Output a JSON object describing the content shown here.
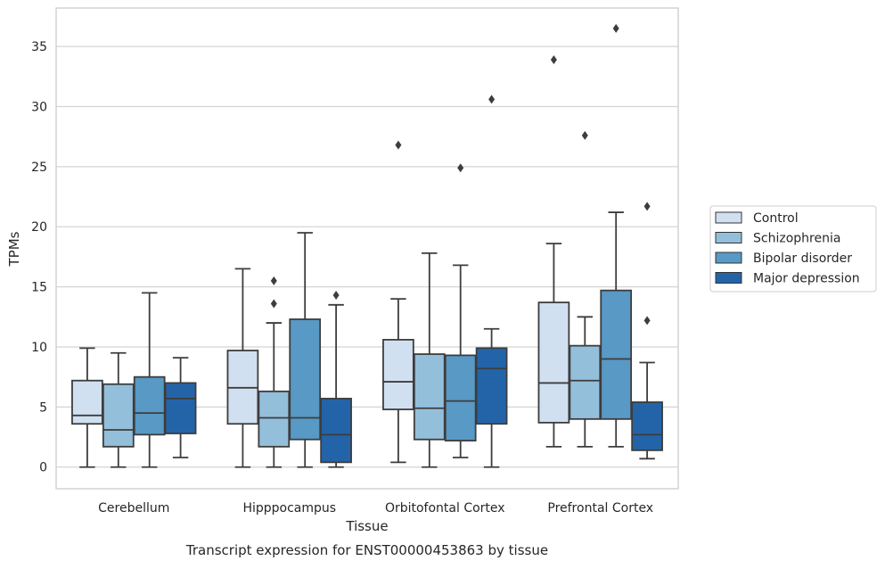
{
  "chart_data": {
    "type": "box",
    "caption": "Transcript expression for ENST00000453863 by tissue",
    "xlabel": "Tissue",
    "ylabel": "TPMs",
    "ylim": [
      -1.8,
      38.2
    ],
    "yticks": [
      0,
      5,
      10,
      15,
      20,
      25,
      30,
      35
    ],
    "grid": "horizontal",
    "legend_position": "right",
    "categories": [
      "Cerebellum",
      "Hipppocampus",
      "Orbitofontal Cortex",
      "Prefrontal Cortex"
    ],
    "series": [
      {
        "name": "Control",
        "color": "#d1e0f0",
        "boxes": [
          {
            "whislo": 0.0,
            "q1": 3.6,
            "med": 4.3,
            "q3": 7.2,
            "whishi": 9.9,
            "fliers": []
          },
          {
            "whislo": 0.0,
            "q1": 3.6,
            "med": 6.6,
            "q3": 9.7,
            "whishi": 16.5,
            "fliers": []
          },
          {
            "whislo": 0.4,
            "q1": 4.8,
            "med": 7.1,
            "q3": 10.6,
            "whishi": 14.0,
            "fliers": [
              26.8
            ]
          },
          {
            "whislo": 1.7,
            "q1": 3.7,
            "med": 7.0,
            "q3": 13.7,
            "whishi": 18.6,
            "fliers": [
              33.9
            ]
          }
        ]
      },
      {
        "name": "Schizophrenia",
        "color": "#93bfdb",
        "boxes": [
          {
            "whislo": 0.0,
            "q1": 1.7,
            "med": 3.1,
            "q3": 6.9,
            "whishi": 9.5,
            "fliers": []
          },
          {
            "whislo": 0.0,
            "q1": 1.7,
            "med": 4.1,
            "q3": 6.3,
            "whishi": 12.0,
            "fliers": [
              13.6,
              15.5
            ]
          },
          {
            "whislo": 0.0,
            "q1": 2.3,
            "med": 4.9,
            "q3": 9.4,
            "whishi": 17.8,
            "fliers": []
          },
          {
            "whislo": 1.7,
            "q1": 4.0,
            "med": 7.2,
            "q3": 10.1,
            "whishi": 12.5,
            "fliers": [
              27.6
            ]
          }
        ]
      },
      {
        "name": "Bipolar disorder",
        "color": "#5899c5",
        "boxes": [
          {
            "whislo": 0.0,
            "q1": 2.7,
            "med": 4.5,
            "q3": 7.5,
            "whishi": 14.5,
            "fliers": []
          },
          {
            "whislo": 0.0,
            "q1": 2.3,
            "med": 4.1,
            "q3": 12.3,
            "whishi": 19.5,
            "fliers": []
          },
          {
            "whislo": 0.8,
            "q1": 2.2,
            "med": 5.5,
            "q3": 9.3,
            "whishi": 16.8,
            "fliers": [
              24.9
            ]
          },
          {
            "whislo": 1.7,
            "q1": 4.0,
            "med": 9.0,
            "q3": 14.7,
            "whishi": 21.2,
            "fliers": [
              36.5
            ]
          }
        ]
      },
      {
        "name": "Major depression",
        "color": "#2364a9",
        "boxes": [
          {
            "whislo": 0.8,
            "q1": 2.8,
            "med": 5.7,
            "q3": 7.0,
            "whishi": 9.1,
            "fliers": []
          },
          {
            "whislo": 0.0,
            "q1": 0.4,
            "med": 2.7,
            "q3": 5.7,
            "whishi": 13.5,
            "fliers": [
              14.3
            ]
          },
          {
            "whislo": 0.0,
            "q1": 3.6,
            "med": 8.2,
            "q3": 9.9,
            "whishi": 11.5,
            "fliers": [
              30.6
            ]
          },
          {
            "whislo": 0.7,
            "q1": 1.4,
            "med": 2.7,
            "q3": 5.4,
            "whishi": 8.7,
            "fliers": [
              12.2,
              21.7
            ]
          }
        ]
      }
    ]
  }
}
